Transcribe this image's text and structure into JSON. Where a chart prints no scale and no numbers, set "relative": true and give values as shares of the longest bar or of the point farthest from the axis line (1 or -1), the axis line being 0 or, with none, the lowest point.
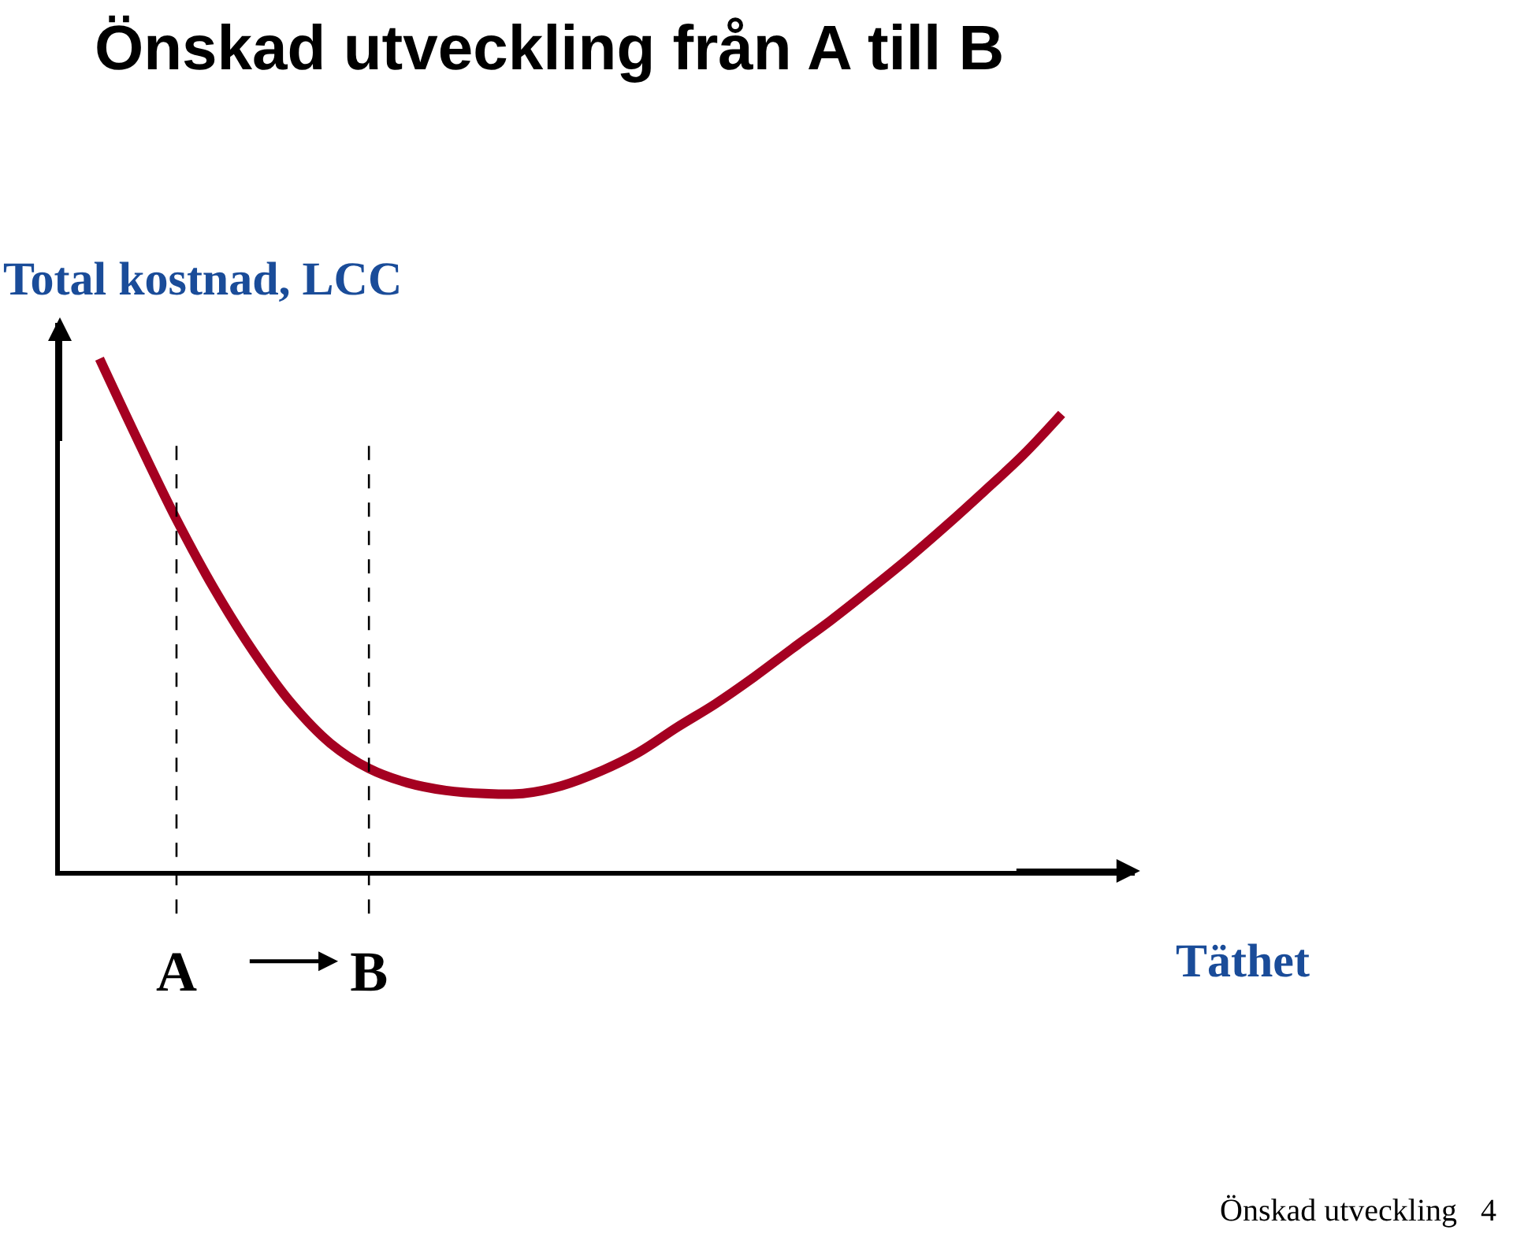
{
  "chart_data": {
    "type": "line",
    "title": "Önskad utveckling från A till B",
    "ylabel": "Total kostnad, LCC",
    "xlabel": "Täthet",
    "relative": true,
    "categories": [
      null,
      null,
      "A",
      null,
      null,
      null,
      null,
      "B",
      null,
      null,
      null,
      null,
      null,
      null,
      null,
      null,
      null,
      null,
      null,
      null,
      null,
      null,
      null,
      null,
      null,
      null
    ],
    "series": [
      {
        "color": "#a50021",
        "values": [
          1.0,
          0.84,
          0.686,
          0.548,
          0.428,
          0.326,
          0.249,
          0.2,
          0.172,
          0.157,
          0.151,
          0.151,
          0.166,
          0.194,
          0.231,
          0.28,
          0.326,
          0.378,
          0.434,
          0.489,
          0.548,
          0.609,
          0.674,
          0.742,
          0.812,
          0.892
        ]
      }
    ],
    "ref_lines": [
      {
        "axis": "x",
        "value": "A",
        "color": "#000000",
        "line_style": "dashed"
      },
      {
        "axis": "x",
        "value": "B",
        "color": "#000000",
        "line_style": "dashed"
      }
    ],
    "annotations": [
      "Önskad utveckling   4"
    ],
    "legend": false,
    "marker": "none",
    "line_style": "solid"
  }
}
